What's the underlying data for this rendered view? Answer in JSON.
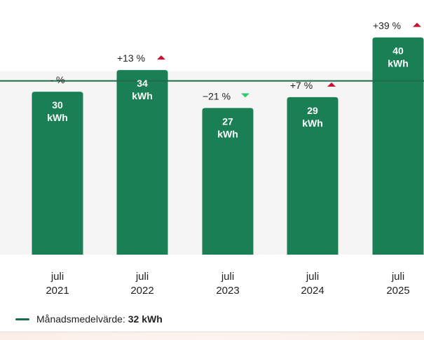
{
  "chart_data": {
    "type": "bar",
    "categories": [
      [
        "juli",
        "2021"
      ],
      [
        "juli",
        "2022"
      ],
      [
        "juli",
        "2023"
      ],
      [
        "juli",
        "2024"
      ],
      [
        "juli",
        "2025"
      ]
    ],
    "values": [
      30,
      34,
      27,
      29,
      40
    ],
    "unit": "kWh",
    "changes": [
      "- %",
      "+13 %",
      "−21 %",
      "+7 %",
      "+39 %"
    ],
    "change_directions": [
      "none",
      "up",
      "down",
      "up",
      "up"
    ],
    "average": 32,
    "title": "",
    "xlabel": "",
    "ylabel": "",
    "ylim": [
      0,
      42
    ],
    "grid": false
  },
  "legend": {
    "label": "Månadsmedelvärde:",
    "value": "32 kWh"
  },
  "colors": {
    "bar": "#1a7f54",
    "average_line": "#1e6b4a",
    "up_arrow": "#c8102e",
    "down_arrow": "#2ecc71",
    "plot_background": "#f5f5f5"
  }
}
